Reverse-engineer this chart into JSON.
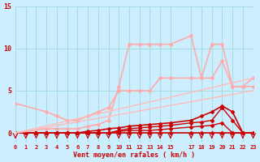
{
  "bg_color": "#cceeff",
  "grid_color": "#aadddd",
  "xlabel": "Vent moyen/en rafales ( km/h )",
  "xlabel_color": "#cc0000",
  "tick_color": "#cc0000",
  "axis_label_color": "#cc0000",
  "xmin": 0,
  "xmax": 23,
  "ymin": -1,
  "ymax": 15,
  "yticks": [
    0,
    5,
    10,
    15
  ],
  "xticks": [
    0,
    1,
    2,
    3,
    4,
    5,
    6,
    7,
    8,
    9,
    10,
    11,
    12,
    13,
    14,
    15,
    17,
    18,
    19,
    20,
    21,
    22,
    23
  ],
  "lines": [
    {
      "x": [
        0,
        1,
        2,
        3,
        4,
        5,
        6,
        7,
        8,
        9,
        10,
        11,
        12,
        13,
        14,
        15,
        17,
        18,
        19,
        20,
        21,
        22,
        23
      ],
      "y": [
        0,
        0,
        0,
        0,
        0,
        0,
        0,
        0,
        0,
        0,
        0,
        0,
        0,
        0,
        0,
        0,
        0,
        0,
        0,
        0,
        0,
        0,
        0
      ],
      "color": "#cc0000",
      "lw": 1.2,
      "marker": "D",
      "ms": 2
    },
    {
      "x": [
        0,
        1,
        2,
        3,
        4,
        5,
        6,
        7,
        8,
        9,
        10,
        11,
        12,
        13,
        14,
        15,
        17,
        18,
        19,
        20,
        21,
        22,
        23
      ],
      "y": [
        0,
        0,
        0,
        0,
        0,
        0,
        0,
        0,
        0,
        0,
        0.2,
        0.3,
        0.3,
        0.3,
        0.4,
        0.5,
        0.7,
        0.8,
        0.9,
        1.2,
        0,
        0,
        0
      ],
      "color": "#cc0000",
      "lw": 1.0,
      "marker": "D",
      "ms": 2
    },
    {
      "x": [
        0,
        1,
        2,
        3,
        4,
        5,
        6,
        7,
        8,
        9,
        10,
        11,
        12,
        13,
        14,
        15,
        17,
        18,
        19,
        20,
        21,
        22,
        23
      ],
      "y": [
        0,
        0,
        0,
        0,
        0,
        0,
        0,
        0,
        0,
        0,
        0.3,
        0.5,
        0.6,
        0.7,
        0.8,
        0.9,
        1.2,
        1.3,
        1.5,
        3.0,
        1.5,
        0,
        0
      ],
      "color": "#cc0000",
      "lw": 1.0,
      "marker": "D",
      "ms": 2
    },
    {
      "x": [
        0,
        1,
        2,
        3,
        4,
        5,
        6,
        7,
        8,
        9,
        10,
        11,
        12,
        13,
        14,
        15,
        17,
        18,
        19,
        20,
        21,
        22,
        23
      ],
      "y": [
        0,
        0,
        0,
        0,
        0,
        0,
        0,
        0.2,
        0.3,
        0.5,
        0.6,
        0.8,
        0.9,
        1.0,
        1.1,
        1.2,
        1.5,
        2.0,
        2.5,
        3.2,
        2.5,
        0,
        0
      ],
      "color": "#cc0000",
      "lw": 1.2,
      "marker": "D",
      "ms": 2
    },
    {
      "x": [
        0,
        3,
        4,
        5,
        6,
        7,
        8,
        9,
        10,
        11,
        12,
        13,
        14,
        15,
        17,
        18,
        19,
        20,
        21,
        22,
        23
      ],
      "y": [
        3.5,
        2.5,
        2.0,
        1.5,
        1.5,
        2.0,
        2.5,
        3.0,
        5.0,
        5.0,
        5.0,
        5.0,
        6.5,
        6.5,
        6.5,
        6.5,
        6.5,
        8.5,
        5.5,
        5.5,
        6.5
      ],
      "color": "#ffaaaa",
      "lw": 1.2,
      "marker": "D",
      "ms": 2
    },
    {
      "x": [
        0,
        3,
        4,
        5,
        6,
        7,
        8,
        9,
        10,
        11,
        12,
        13,
        14,
        15,
        17,
        18,
        19,
        20,
        21,
        22,
        23
      ],
      "y": [
        0,
        0.5,
        0.5,
        0.5,
        0.5,
        0.8,
        1.0,
        1.5,
        5.5,
        10.5,
        10.5,
        10.5,
        10.5,
        10.5,
        11.5,
        6.5,
        10.5,
        10.5,
        5.5,
        5.5,
        5.5
      ],
      "color": "#ffaaaa",
      "lw": 1.2,
      "marker": "D",
      "ms": 2
    },
    {
      "x": [
        0,
        23
      ],
      "y": [
        0,
        6.5
      ],
      "color": "#ffbbbb",
      "lw": 1.0,
      "marker": null,
      "ms": 0
    },
    {
      "x": [
        0,
        23
      ],
      "y": [
        0,
        5.0
      ],
      "color": "#ffbbbb",
      "lw": 1.0,
      "marker": null,
      "ms": 0
    }
  ],
  "wind_arrows": {
    "x": [
      0,
      1,
      2,
      3,
      4,
      5,
      6,
      7,
      8,
      9,
      10,
      11,
      12,
      13,
      14,
      15,
      17,
      18,
      19,
      20,
      21,
      22,
      23
    ],
    "color": "#cc0000"
  }
}
